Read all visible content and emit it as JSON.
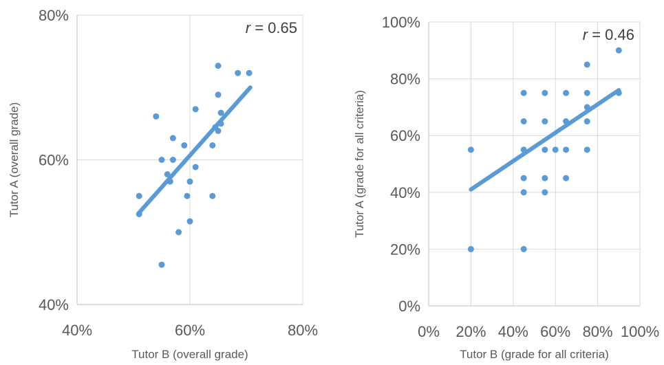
{
  "chart_data": [
    {
      "type": "scatter",
      "xlabel": "Tutor B (overall grade)",
      "ylabel": "Tutor A (overall grade)",
      "annotation": {
        "italic": "r",
        "text": " = 0.65"
      },
      "xlim": [
        40,
        80
      ],
      "ylim": [
        40,
        80
      ],
      "xticks": [
        "40%",
        "60%",
        "80%"
      ],
      "yticks": [
        "40%",
        "60%",
        "80%"
      ],
      "xtick_values": [
        40,
        60,
        80
      ],
      "ytick_values": [
        40,
        60,
        80
      ],
      "grid": true,
      "trendline": [
        [
          51,
          52.7
        ],
        [
          70.7,
          70
        ]
      ],
      "points": [
        [
          51,
          55
        ],
        [
          51,
          52.5
        ],
        [
          54,
          66
        ],
        [
          55,
          60
        ],
        [
          55,
          45.5
        ],
        [
          56,
          58
        ],
        [
          56.5,
          57
        ],
        [
          57,
          63
        ],
        [
          57,
          60
        ],
        [
          58,
          50
        ],
        [
          59,
          62
        ],
        [
          59.5,
          55
        ],
        [
          60,
          57
        ],
        [
          60,
          51.5
        ],
        [
          61,
          67
        ],
        [
          61,
          59
        ],
        [
          64,
          62
        ],
        [
          64,
          55
        ],
        [
          64.5,
          64.5
        ],
        [
          65,
          73
        ],
        [
          65,
          69
        ],
        [
          65,
          64
        ],
        [
          65.5,
          66.5
        ],
        [
          65.5,
          65
        ],
        [
          68.5,
          72
        ],
        [
          70.5,
          72
        ]
      ]
    },
    {
      "type": "scatter",
      "xlabel": "Tutor B (grade for all criteria)",
      "ylabel": "Tutor A (grade for all criteria)",
      "annotation": {
        "italic": "r",
        "text": " = 0.46"
      },
      "xlim": [
        0,
        100
      ],
      "ylim": [
        0,
        100
      ],
      "xticks": [
        "0%",
        "20%",
        "40%",
        "60%",
        "80%",
        "100%"
      ],
      "yticks": [
        "0%",
        "20%",
        "40%",
        "60%",
        "80%",
        "100%"
      ],
      "xtick_values": [
        0,
        20,
        40,
        60,
        80,
        100
      ],
      "ytick_values": [
        0,
        20,
        40,
        60,
        80,
        100
      ],
      "grid": true,
      "trendline": [
        [
          20,
          41
        ],
        [
          90,
          76
        ]
      ],
      "points": [
        [
          20,
          55
        ],
        [
          20,
          20
        ],
        [
          45,
          75
        ],
        [
          45,
          65
        ],
        [
          45,
          55
        ],
        [
          45,
          45
        ],
        [
          45,
          40
        ],
        [
          45,
          20
        ],
        [
          55,
          75
        ],
        [
          55,
          65
        ],
        [
          55,
          55
        ],
        [
          55,
          45
        ],
        [
          55,
          40
        ],
        [
          60,
          55
        ],
        [
          65,
          75
        ],
        [
          65,
          65
        ],
        [
          65,
          55
        ],
        [
          65,
          45
        ],
        [
          75,
          85
        ],
        [
          75,
          75
        ],
        [
          75,
          70
        ],
        [
          75,
          65
        ],
        [
          75,
          55
        ],
        [
          90,
          90
        ],
        [
          90,
          75
        ]
      ]
    }
  ]
}
